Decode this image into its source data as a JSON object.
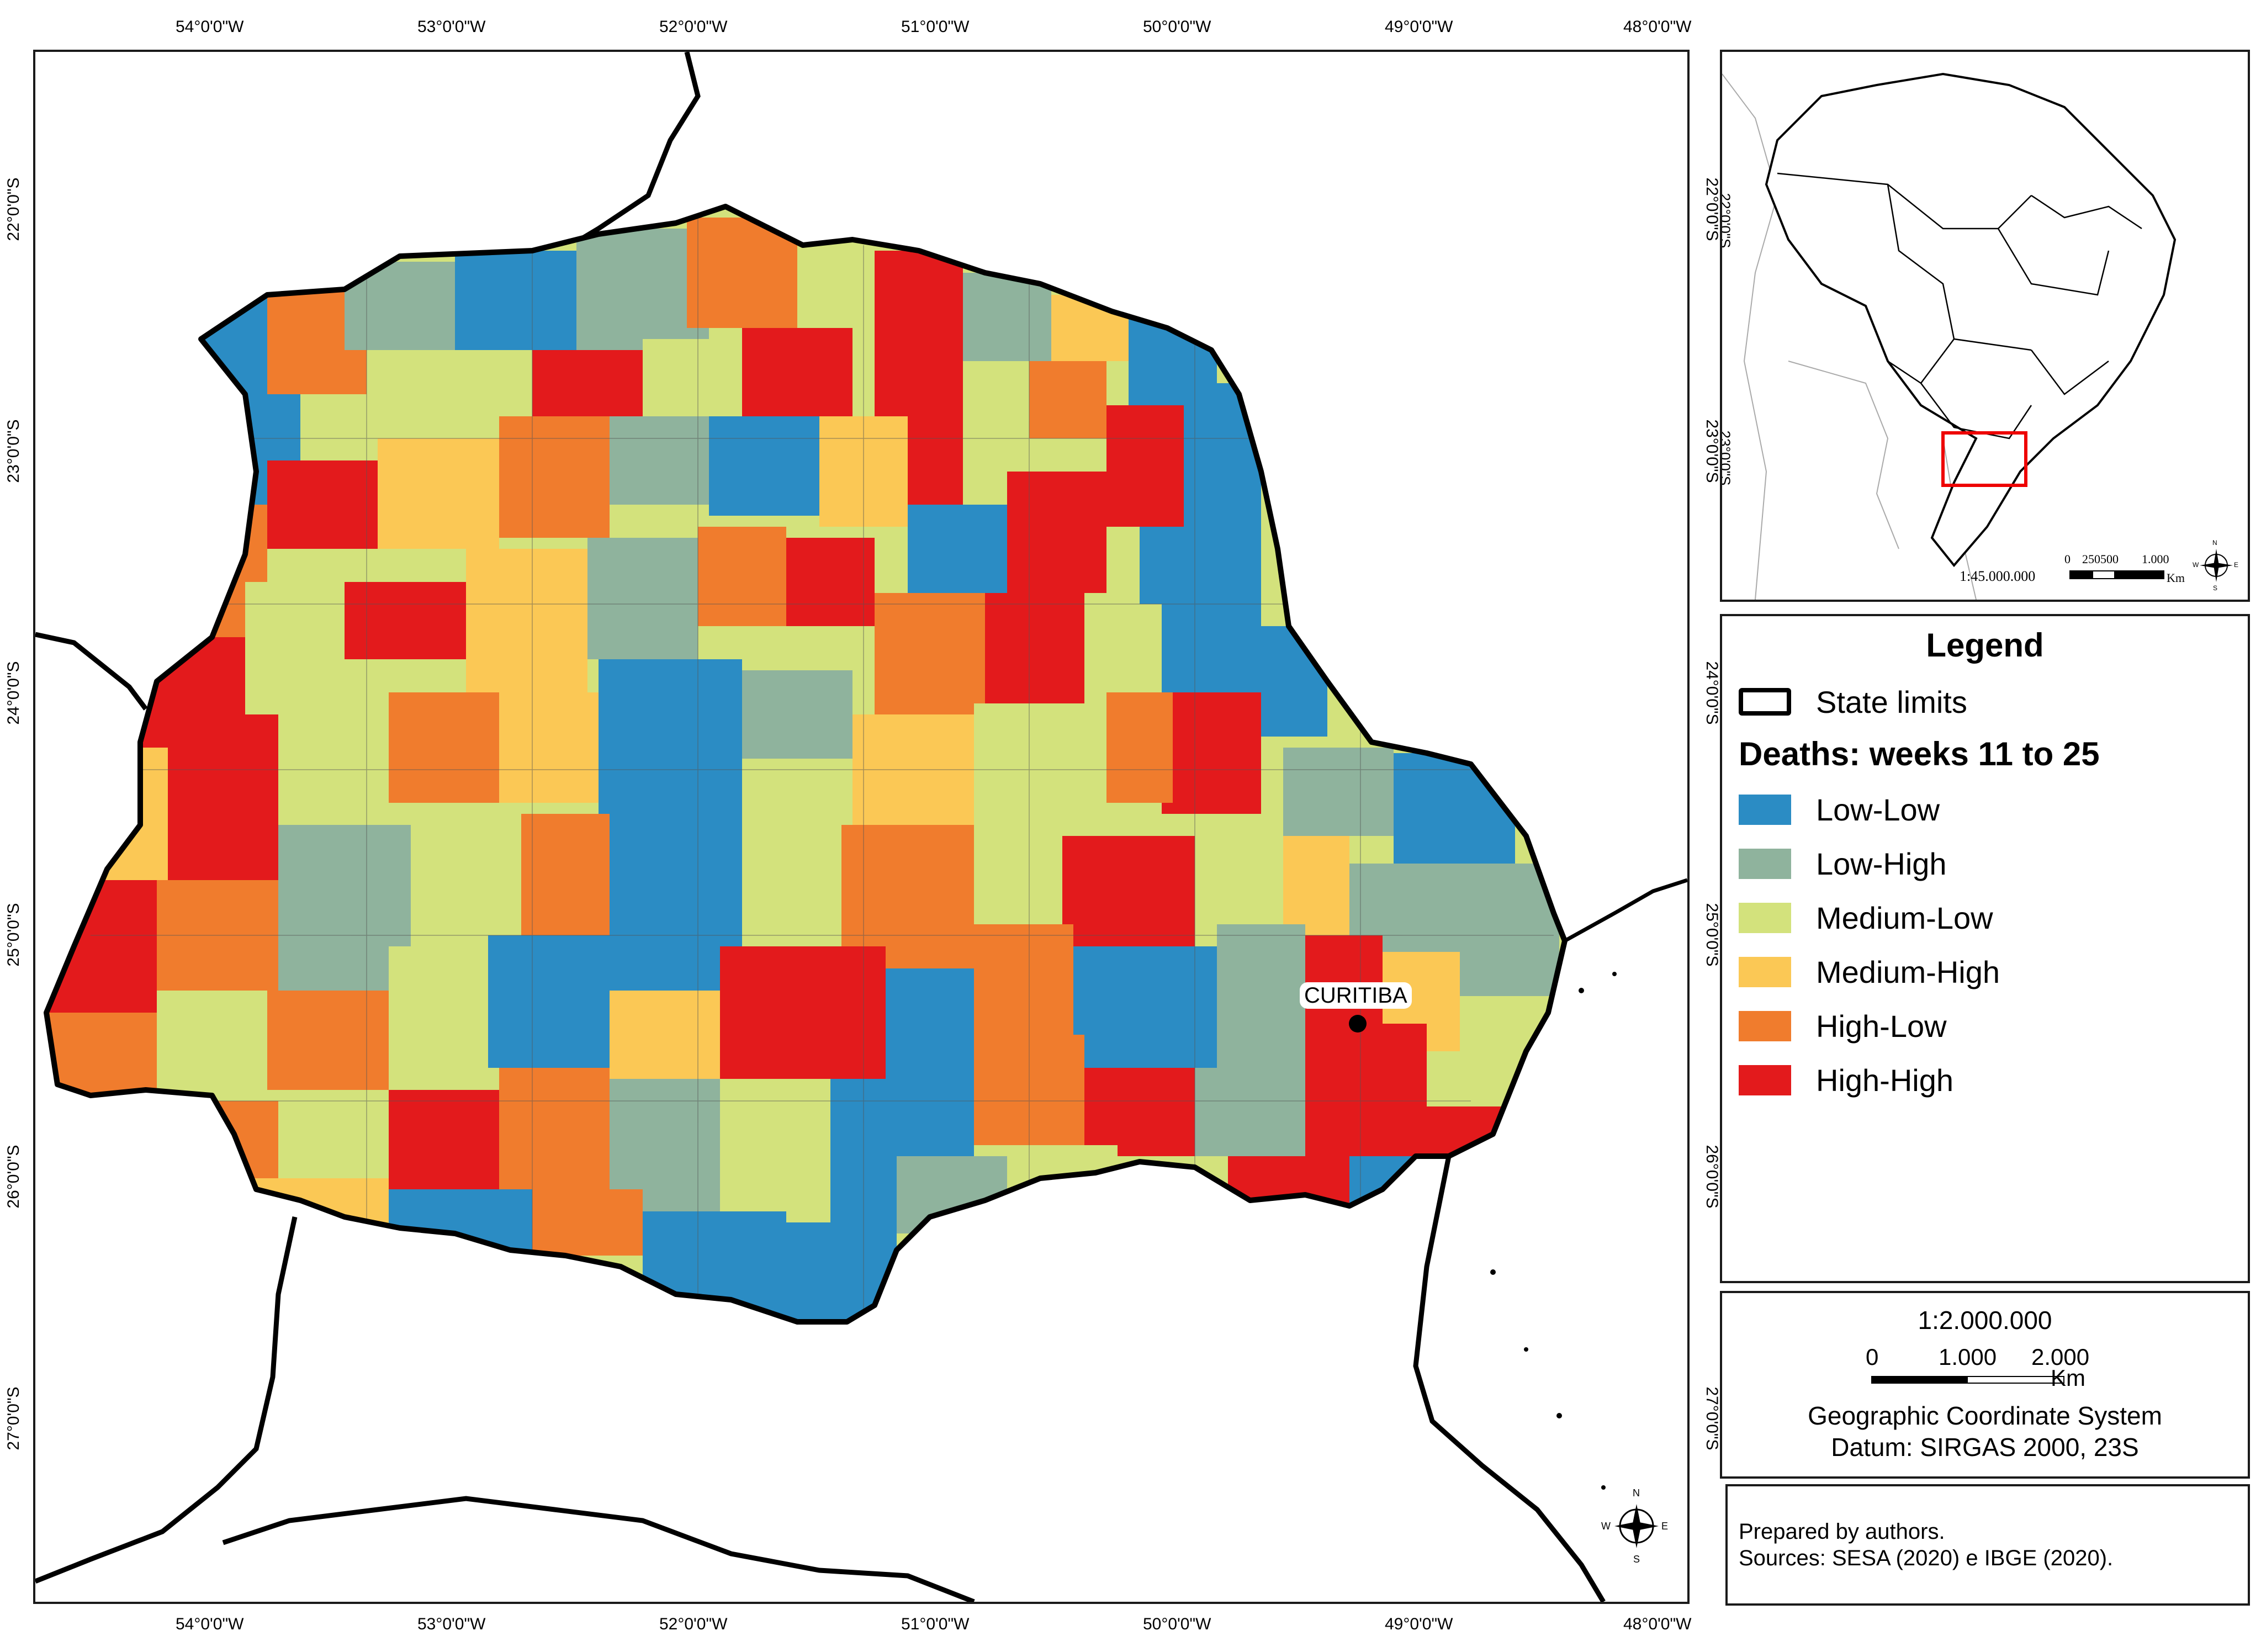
{
  "main_map": {
    "top_lon_labels": [
      "54°0'0\"W",
      "53°0'0\"W",
      "52°0'0\"W",
      "51°0'0\"W",
      "50°0'0\"W",
      "49°0'0\"W",
      "48°0'0\"W"
    ],
    "bottom_lon_labels": [
      "54°0'0\"W",
      "53°0'0\"W",
      "52°0'0\"W",
      "51°0'0\"W",
      "50°0'0\"W",
      "49°0'0\"W",
      "48°0'0\"W"
    ],
    "left_lat_labels": [
      "22°0'0\"S",
      "23°0'0\"S",
      "24°0'0\"S",
      "25°0'0\"S",
      "26°0'0\"S",
      "27°0'0\"S"
    ],
    "right_lat_labels": [
      "22°0'0\"S",
      "23°0'0\"S",
      "24°0'0\"S",
      "25°0'0\"S",
      "26°0'0\"S",
      "27°0'0\"S"
    ],
    "capital_label": "CURITIBA",
    "north_arrow": {
      "n": "N",
      "s": "S",
      "e": "E",
      "w": "W",
      "icon": "compass-rose-icon"
    }
  },
  "inset_map": {
    "lat_labels": [
      "22°0'0\"S",
      "23°0'0\"S"
    ],
    "scale_ratio": "1:45.000.000",
    "scale_ticks": [
      "0",
      "250500",
      "1.000"
    ],
    "scale_unit": "Km",
    "north_arrow": {
      "n": "N",
      "s": "S",
      "e": "E",
      "w": "W"
    }
  },
  "legend": {
    "title": "Legend",
    "state_limits_label": "State limits",
    "subtitle": "Deaths: weeks 11 to 25",
    "classes": [
      {
        "label": "Low-Low",
        "color": "#2b8cc4"
      },
      {
        "label": "Low-High",
        "color": "#8fb39d"
      },
      {
        "label": "Medium-Low",
        "color": "#d3e27c"
      },
      {
        "label": "Medium-High",
        "color": "#fbc855"
      },
      {
        "label": "High-Low",
        "color": "#f07c2d"
      },
      {
        "label": "High-High",
        "color": "#e31a1c"
      }
    ]
  },
  "scale_box": {
    "ratio": "1:2.000.000",
    "ticks": [
      "0",
      "1.000",
      "2.000"
    ],
    "unit": "Km",
    "crs": "Geographic Coordinate System",
    "datum": "Datum: SIRGAS 2000, 23S"
  },
  "credits": {
    "line1": "Prepared by authors.",
    "line2": "Sources: SESA (2020) e IBGE (2020)."
  }
}
